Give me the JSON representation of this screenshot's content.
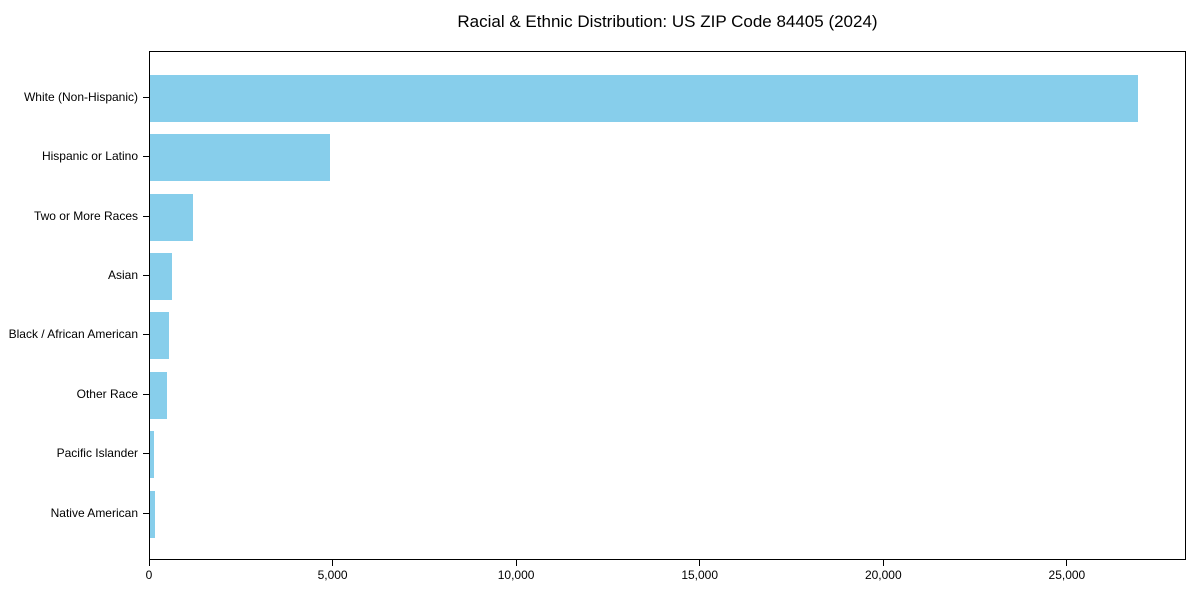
{
  "chart_data": {
    "type": "bar",
    "orientation": "horizontal",
    "title": "Racial & Ethnic Distribution: US ZIP Code 84405 (2024)",
    "categories": [
      "White (Non-Hispanic)",
      "Hispanic or Latino",
      "Two or More Races",
      "Asian",
      "Black / African American",
      "Other Race",
      "Pacific Islander",
      "Native American"
    ],
    "values": [
      26900,
      4900,
      1170,
      600,
      520,
      460,
      110,
      140
    ],
    "xlabel": "",
    "ylabel": "",
    "xlim": [
      0,
      28245
    ],
    "xticks": [
      0,
      5000,
      10000,
      15000,
      20000,
      25000
    ],
    "xtick_labels": [
      "0",
      "5,000",
      "10,000",
      "15,000",
      "20,000",
      "25,000"
    ],
    "bar_color": "#87CEEB",
    "grid": false,
    "legend": null
  }
}
